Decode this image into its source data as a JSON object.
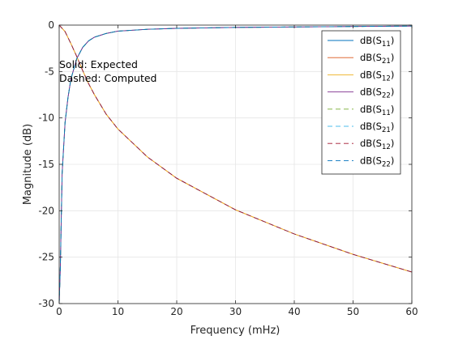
{
  "chart_data": {
    "type": "line",
    "xlabel": "Frequency (mHz)",
    "ylabel": "Magnitude (dB)",
    "xlim": [
      0,
      60
    ],
    "ylim": [
      -30,
      0
    ],
    "xticks": [
      0,
      10,
      20,
      30,
      40,
      50,
      60
    ],
    "yticks": [
      0,
      -5,
      -10,
      -15,
      -20,
      -25,
      -30
    ],
    "grid": true,
    "legend_placement": "top-right",
    "annotations": [
      "Solid: Expected",
      "Dashed: Computed"
    ],
    "series": [
      {
        "name": "dB(S11)",
        "label_base": "dB(S",
        "label_sub": "11",
        "label_tail": ")",
        "style": "solid",
        "color": "#0072BD",
        "x": [
          0,
          0.2,
          0.5,
          1,
          1.5,
          2,
          2.5,
          3,
          4,
          5,
          6,
          8,
          10,
          15,
          20,
          30,
          40,
          50,
          60
        ],
        "y": [
          -30,
          -26,
          -16,
          -10.5,
          -7.8,
          -5.8,
          -4.7,
          -3.6,
          -2.4,
          -1.7,
          -1.3,
          -0.9,
          -0.65,
          -0.45,
          -0.35,
          -0.25,
          -0.2,
          -0.15,
          -0.1
        ]
      },
      {
        "name": "dB(S21)",
        "label_base": "dB(S",
        "label_sub": "21",
        "label_tail": ")",
        "style": "solid",
        "color": "#D95319",
        "x": [
          0,
          1,
          2,
          3,
          4,
          5,
          6,
          8,
          10,
          15,
          20,
          30,
          40,
          50,
          60
        ],
        "y": [
          0,
          -0.7,
          -2.0,
          -3.4,
          -4.9,
          -6.3,
          -7.5,
          -9.6,
          -11.2,
          -14.2,
          -16.5,
          -19.9,
          -22.5,
          -24.7,
          -26.6
        ]
      },
      {
        "name": "dB(S12)",
        "label_base": "dB(S",
        "label_sub": "12",
        "label_tail": ")",
        "style": "solid",
        "color": "#EDB120",
        "x": [
          0,
          1,
          2,
          3,
          4,
          5,
          6,
          8,
          10,
          15,
          20,
          30,
          40,
          50,
          60
        ],
        "y": [
          0,
          -0.7,
          -2.0,
          -3.4,
          -4.9,
          -6.3,
          -7.5,
          -9.6,
          -11.2,
          -14.2,
          -16.5,
          -19.9,
          -22.5,
          -24.7,
          -26.6
        ]
      },
      {
        "name": "dB(S22)",
        "label_base": "dB(S",
        "label_sub": "22",
        "label_tail": ")",
        "style": "solid",
        "color": "#7E2F8E",
        "x": [
          0,
          0.2,
          0.5,
          1,
          1.5,
          2,
          2.5,
          3,
          4,
          5,
          6,
          8,
          10,
          15,
          20,
          30,
          40,
          50,
          60
        ],
        "y": [
          -30,
          -26,
          -16,
          -10.5,
          -7.8,
          -5.8,
          -4.7,
          -3.6,
          -2.4,
          -1.7,
          -1.3,
          -0.9,
          -0.65,
          -0.45,
          -0.35,
          -0.25,
          -0.2,
          -0.15,
          -0.1
        ]
      },
      {
        "name": "dB(S11)",
        "label_base": "dB(S",
        "label_sub": "11",
        "label_tail": ")",
        "style": "dashed",
        "color": "#77AC30",
        "x": [
          0,
          0.2,
          0.5,
          1,
          1.5,
          2,
          2.5,
          3,
          4,
          5,
          6,
          8,
          10,
          15,
          20,
          30,
          40,
          50,
          60
        ],
        "y": [
          -30,
          -26,
          -16,
          -10.5,
          -7.8,
          -5.8,
          -4.7,
          -3.6,
          -2.4,
          -1.7,
          -1.3,
          -0.9,
          -0.65,
          -0.45,
          -0.35,
          -0.25,
          -0.2,
          -0.15,
          -0.1
        ]
      },
      {
        "name": "dB(S21)",
        "label_base": "dB(S",
        "label_sub": "21",
        "label_tail": ")",
        "style": "dashed",
        "color": "#4DBEEE",
        "x": [
          0,
          1,
          2,
          3,
          4,
          5,
          6,
          8,
          10,
          15,
          20,
          30,
          40,
          50,
          60
        ],
        "y": [
          0,
          -0.7,
          -2.0,
          -3.4,
          -4.9,
          -6.3,
          -7.5,
          -9.6,
          -11.2,
          -14.2,
          -16.5,
          -19.9,
          -22.5,
          -24.7,
          -26.6
        ]
      },
      {
        "name": "dB(S12)",
        "label_base": "dB(S",
        "label_sub": "12",
        "label_tail": ")",
        "style": "dashed",
        "color": "#A2142F",
        "x": [
          0,
          1,
          2,
          3,
          4,
          5,
          6,
          8,
          10,
          15,
          20,
          30,
          40,
          50,
          60
        ],
        "y": [
          0,
          -0.7,
          -2.0,
          -3.4,
          -4.9,
          -6.3,
          -7.5,
          -9.6,
          -11.2,
          -14.2,
          -16.5,
          -19.9,
          -22.5,
          -24.7,
          -26.6
        ]
      },
      {
        "name": "dB(S22)",
        "label_base": "dB(S",
        "label_sub": "22",
        "label_tail": ")",
        "style": "dashed",
        "color": "#0072BD",
        "x": [
          0,
          0.2,
          0.5,
          1,
          1.5,
          2,
          2.5,
          3,
          4,
          5,
          6,
          8,
          10,
          15,
          20,
          30,
          40,
          50,
          60
        ],
        "y": [
          -30,
          -26,
          -16,
          -10.5,
          -7.8,
          -5.8,
          -4.7,
          -3.6,
          -2.4,
          -1.7,
          -1.3,
          -0.9,
          -0.65,
          -0.45,
          -0.35,
          -0.25,
          -0.2,
          -0.15,
          -0.1
        ]
      }
    ]
  }
}
